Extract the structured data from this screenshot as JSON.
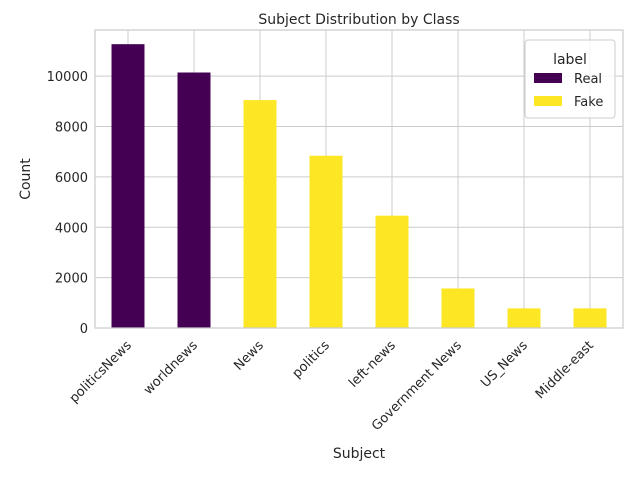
{
  "chart_data": {
    "type": "bar",
    "title": "Subject Distribution by Class",
    "xlabel": "Subject",
    "ylabel": "Count",
    "categories": [
      "politicsNews",
      "worldnews",
      "News",
      "politics",
      "left-news",
      "Government News",
      "US_News",
      "Middle-east"
    ],
    "series": [
      {
        "name": "Real",
        "color": "#440154",
        "values": [
          11270,
          10145,
          0,
          0,
          0,
          0,
          0,
          0
        ]
      },
      {
        "name": "Fake",
        "color": "#fde725",
        "values": [
          0,
          0,
          9050,
          6840,
          4460,
          1570,
          780,
          780
        ]
      }
    ],
    "stacked": true,
    "ylim": [
      0,
      11833
    ],
    "yticks": [
      0,
      2000,
      4000,
      6000,
      8000,
      10000
    ],
    "grid": true,
    "legend": {
      "title": "label",
      "placement": "top-right"
    }
  }
}
